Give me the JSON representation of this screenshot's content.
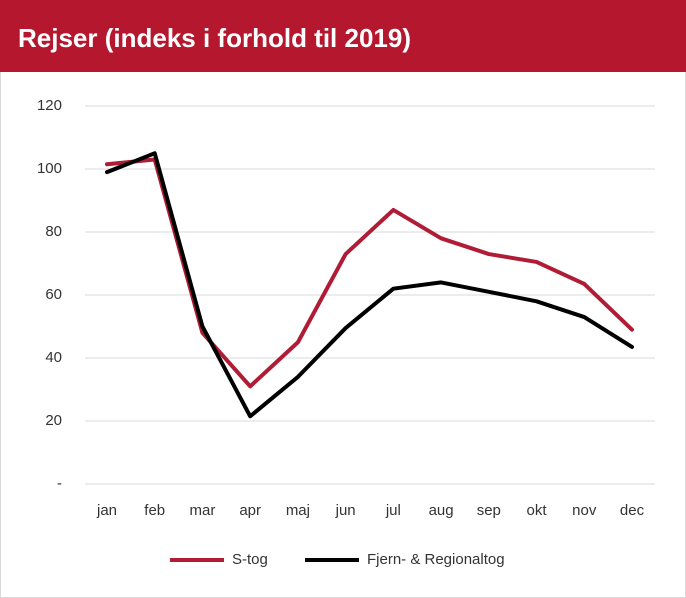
{
  "chart_data": {
    "type": "line",
    "title": "Rejser (indeks i forhold til 2019)",
    "categories": [
      "jan",
      "feb",
      "mar",
      "apr",
      "maj",
      "jun",
      "jul",
      "aug",
      "sep",
      "okt",
      "nov",
      "dec"
    ],
    "series": [
      {
        "name": "S-tog",
        "color": "#b01c35",
        "values": [
          101.5,
          103,
          48,
          31,
          45,
          73,
          87,
          78,
          73,
          70.5,
          63.5,
          49
        ]
      },
      {
        "name": "Fjern- & Regionaltog",
        "color": "#000000",
        "values": [
          99,
          105,
          50,
          21.5,
          34,
          49.5,
          62,
          64,
          61,
          58,
          53,
          43.5
        ]
      }
    ],
    "ylim": [
      0,
      120
    ],
    "yticks": [
      {
        "value": 0,
        "label": "-"
      },
      20,
      40,
      60,
      80,
      100,
      120
    ],
    "grid": true,
    "legend": "bottom"
  }
}
